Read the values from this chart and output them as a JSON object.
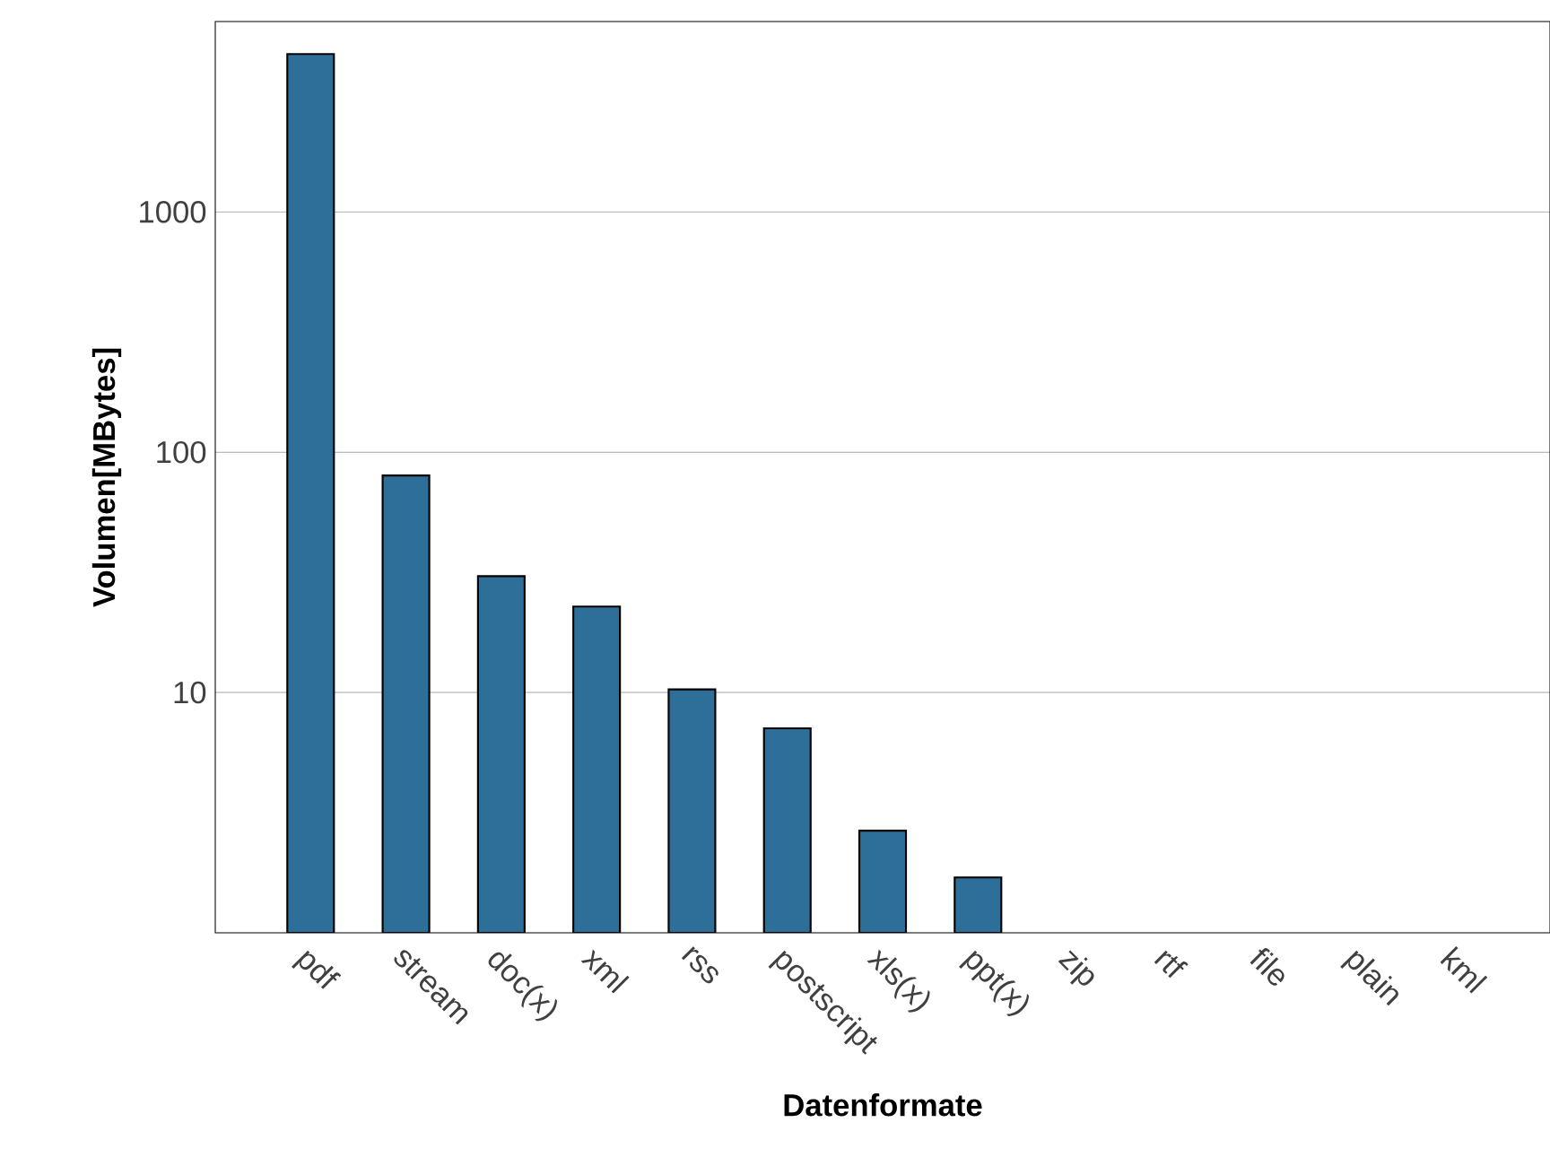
{
  "chart_data": {
    "type": "bar",
    "xlabel": "Datenformate",
    "ylabel": "Volumen[MBytes]",
    "categories": [
      "pdf",
      "stream",
      "doc(x)",
      "xml",
      "rss",
      "postscript",
      "xls(x)",
      "ppt(x)",
      "zip",
      "rtf",
      "file",
      "plain",
      "kml"
    ],
    "values": [
      4540,
      80,
      30.5,
      22.8,
      10.3,
      7.1,
      2.66,
      1.7,
      null,
      null,
      null,
      null,
      null
    ],
    "color": "#2e6f99",
    "log": "y",
    "ylim": [
      1,
      6200
    ],
    "yticks": [
      10,
      100,
      1000
    ],
    "grid": "y"
  }
}
